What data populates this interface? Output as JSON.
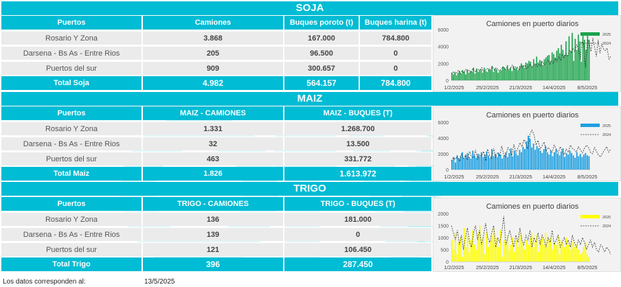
{
  "sections": [
    {
      "title": "SOJA",
      "columns": [
        "Puertos",
        "Camiones",
        "Buques poroto (t)",
        "Buques harina (t)"
      ],
      "rows": [
        [
          "Rosario Y Zona",
          "3.868",
          "167.000",
          "784.800"
        ],
        [
          "Darsena - Bs As - Entre Rios",
          "205",
          "96.500",
          "0"
        ],
        [
          "Puertos del sur",
          "909",
          "300.657",
          "0"
        ]
      ],
      "total": [
        "Total Soja",
        "4.982",
        "564.157",
        "784.800"
      ]
    },
    {
      "title": "MAIZ",
      "columns": [
        "Puertos",
        "MAIZ - CAMIONES",
        "MAIZ - BUQUES (T)"
      ],
      "rows": [
        [
          "Rosario Y Zona",
          "1.331",
          "1.268.700"
        ],
        [
          "Darsena - Bs As - Entre Rios",
          "32",
          "13.500"
        ],
        [
          "Puertos del sur",
          "463",
          "331.772"
        ]
      ],
      "total": [
        "Total Maiz",
        "1.826",
        "1.613.972"
      ]
    },
    {
      "title": "TRIGO",
      "columns": [
        "Puertos",
        "TRIGO - CAMIONES",
        "TRIGO - BUQUES (T)"
      ],
      "rows": [
        [
          "Rosario Y Zona",
          "136",
          "181.000"
        ],
        [
          "Darsena - Bs As - Entre Rios",
          "139",
          "0"
        ],
        [
          "Puertos del sur",
          "121",
          "106.450"
        ]
      ],
      "total": [
        "Total Trigo",
        "396",
        "287.450"
      ]
    }
  ],
  "footer": {
    "label": "Los datos corresponden al:",
    "date": "13/5/2025"
  },
  "chart_data": [
    {
      "type": "bar",
      "title": "Camiones en puerto diarios",
      "x_ticks": [
        "1/2/2025",
        "25/2/2025",
        "21/3/2025",
        "14/4/2025",
        "8/5/2025"
      ],
      "ylim": [
        0,
        6000
      ],
      "y_ticks": [
        0,
        2000,
        4000,
        6000
      ],
      "legend_position": "top-right",
      "series": [
        {
          "name": "2025",
          "kind": "bar",
          "color": "#1aa34a",
          "values": [
            900,
            700,
            1000,
            600,
            900,
            1100,
            800,
            1200,
            1000,
            700,
            1300,
            900,
            1100,
            1000,
            1500,
            800,
            1400,
            1000,
            1200,
            1300,
            900,
            1500,
            1100,
            1000,
            1400,
            1200,
            1700,
            1000,
            1400,
            1300,
            900,
            1100,
            1200,
            1600,
            1500,
            1300,
            1800,
            1200,
            1500,
            1100,
            1700,
            1400,
            1500,
            1200,
            1700,
            2000,
            1800,
            1500,
            2100,
            2000,
            2300,
            2200,
            1700,
            2500,
            1900,
            2800,
            2100,
            2400,
            2300,
            1800,
            2500,
            2700,
            2900,
            3000,
            2300,
            3300,
            3100,
            2700,
            3500,
            3800,
            3200,
            4200,
            3600,
            3000,
            4600,
            2900,
            5200,
            3400,
            5600,
            2300,
            4900,
            3600,
            5400,
            4600,
            2200,
            5500,
            4800,
            3600,
            5300,
            4800
          ]
        },
        {
          "name": "2024",
          "kind": "line",
          "color": "#333333",
          "values": [
            800,
            1000,
            700,
            900,
            1200,
            800,
            1100,
            900,
            1300,
            1000,
            1200,
            900,
            1400,
            1100,
            1000,
            1300,
            1200,
            1500,
            1000,
            1200,
            1400,
            1100,
            1300,
            1600,
            1200,
            1500,
            1300,
            1100,
            1400,
            1600,
            1300,
            1500,
            1200,
            1400,
            1800,
            1300,
            1600,
            1500,
            1200,
            1700,
            1500,
            1800,
            1400,
            1600,
            1900,
            1500,
            1700,
            2000,
            1600,
            1900,
            1700,
            2200,
            1800,
            2100,
            2400,
            1900,
            2300,
            2000,
            2600,
            2200,
            2800,
            2400,
            3000,
            2600,
            3200,
            2800,
            3600,
            3300,
            3800,
            3400,
            4200,
            3800,
            2400,
            4600,
            4200,
            1500,
            4800,
            4400,
            3400,
            5000,
            3900,
            2800,
            4800,
            3200,
            4300,
            3700,
            3500,
            3800,
            2500,
            2800
          ]
        }
      ]
    },
    {
      "type": "bar",
      "title": "Camiones en puerto diarios",
      "x_ticks": [
        "1/2/2025",
        "25/2/2025",
        "21/3/2025",
        "14/4/2025",
        "8/5/2025"
      ],
      "ylim": [
        0,
        6000
      ],
      "y_ticks": [
        0,
        2000,
        4000,
        6000
      ],
      "legend_position": "top-right",
      "series": [
        {
          "name": "2025",
          "kind": "bar",
          "color": "#1e9fe0",
          "values": [
            1200,
            1600,
            900,
            1800,
            1400,
            1700,
            2200,
            1500,
            1900,
            2100,
            1600,
            1400,
            2400,
            1800,
            1500,
            2000,
            1700,
            2200,
            1600,
            1900,
            2300,
            1800,
            1500,
            2600,
            1700,
            2000,
            1600,
            2100,
            1900,
            1400,
            1800,
            2200,
            1600,
            2100,
            2700,
            1700,
            2400,
            2000,
            1800,
            2500,
            2200,
            2900,
            2600,
            3600,
            4300,
            3900,
            2800,
            3300,
            2500,
            3000,
            2700,
            2400,
            2100,
            2600,
            3000,
            2200,
            1900,
            2400,
            1700,
            2200,
            2600,
            2000,
            1800,
            2300,
            2700,
            1600,
            2100,
            1900,
            2400,
            2100,
            1800,
            1500,
            2200,
            1700,
            2000,
            1600,
            1900,
            2100,
            1800,
            1700
          ]
        },
        {
          "name": "2024",
          "kind": "line",
          "color": "#333333",
          "values": [
            1100,
            1500,
            1300,
            1700,
            1000,
            2000,
            1400,
            1800,
            1200,
            2300,
            1600,
            1500,
            2500,
            1300,
            1900,
            1700,
            2300,
            1100,
            2600,
            1800,
            1400,
            2700,
            1500,
            2200,
            1700,
            3000,
            1900,
            1600,
            2800,
            2400,
            1800,
            3200,
            2100,
            2700,
            3400,
            2900,
            3800,
            3300,
            2600,
            4500,
            5000,
            4400,
            3100,
            3700,
            2600,
            3000,
            3500,
            2300,
            2800,
            2500,
            2200,
            3100,
            2600,
            2100,
            2900,
            2300,
            1900,
            2600,
            2200,
            3100,
            2700,
            2500,
            2200,
            2900,
            2500,
            2100,
            2700,
            3100,
            2800,
            2200,
            2000,
            2800,
            2300,
            1800,
            1600,
            2100,
            2500,
            2900,
            2200,
            2600
          ]
        }
      ]
    },
    {
      "type": "bar",
      "title": "Camiones en puerto diarios",
      "x_ticks": [
        "1/2/2025",
        "25/2/2025",
        "21/3/2025",
        "14/4/2025",
        "8/5/2025"
      ],
      "ylim": [
        0,
        2000
      ],
      "y_ticks": [
        0,
        500,
        1000,
        1500,
        2000
      ],
      "legend_position": "top-right",
      "series": [
        {
          "name": "2025",
          "kind": "bar",
          "color": "#ffff00",
          "values": [
            900,
            500,
            1200,
            300,
            800,
            1000,
            200,
            1400,
            600,
            1100,
            400,
            900,
            1300,
            700,
            500,
            1200,
            1500,
            800,
            1000,
            300,
            1200,
            600,
            900,
            1100,
            1400,
            700,
            1000,
            600,
            1300,
            200,
            900,
            800,
            1100,
            500,
            700,
            1000,
            400,
            900,
            600,
            1200,
            1100,
            800,
            500,
            900,
            700,
            1000,
            1200,
            600,
            800,
            1100,
            400,
            900,
            1000,
            700,
            1200,
            600,
            900,
            1000,
            500,
            800,
            700,
            1100,
            300,
            900,
            800,
            600,
            1000,
            700,
            500,
            900,
            800,
            600,
            700,
            500,
            300,
            400,
            600,
            800,
            300,
            200
          ]
        },
        {
          "name": "2024",
          "kind": "line",
          "color": "#333333",
          "values": [
            1500,
            1200,
            900,
            1300,
            700,
            1100,
            500,
            1000,
            1400,
            800,
            600,
            1200,
            1500,
            900,
            1300,
            700,
            1100,
            1600,
            1000,
            800,
            1200,
            1500,
            600,
            1000,
            800,
            1200,
            1900,
            700,
            1000,
            1300,
            900,
            600,
            1100,
            800,
            1400,
            900,
            700,
            1100,
            900,
            1300,
            600,
            1000,
            800,
            1200,
            700,
            1100,
            900,
            600,
            1000,
            800,
            1300,
            700,
            900,
            1100,
            600,
            800,
            1000,
            700,
            900,
            600,
            1100,
            800,
            600,
            900,
            700,
            1000,
            800,
            500,
            700,
            900,
            600,
            800,
            500,
            400,
            700,
            600,
            400,
            600,
            500,
            300
          ]
        }
      ]
    }
  ]
}
